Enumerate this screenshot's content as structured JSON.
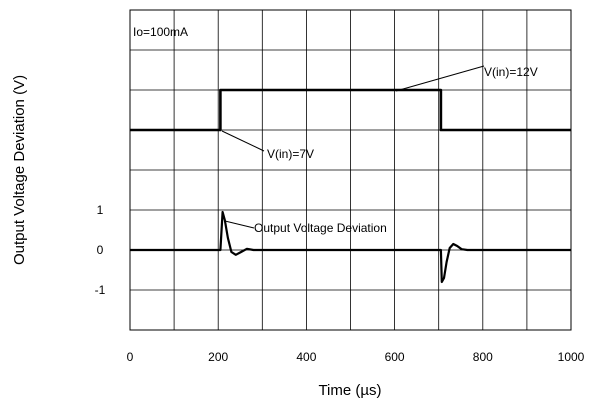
{
  "chart_data": {
    "type": "line",
    "title": "",
    "xlabel": "Time (µs)",
    "ylabel": "Output Voltage Deviation (V)",
    "xlim": [
      0,
      1000
    ],
    "x_ticks": [
      "0",
      "200",
      "400",
      "600",
      "800",
      "1000"
    ],
    "y_ticks": [
      "1",
      "0",
      "-1"
    ],
    "grid": true,
    "annotations": {
      "condition": "Io=100mA",
      "vin_high": "V(in)=12V",
      "vin_low": "V(in)=7V",
      "deviation": "Output Voltage Deviation"
    },
    "series": [
      {
        "x": [
          0,
          205,
          205,
          705,
          705,
          1000
        ],
        "y": [
          7,
          7,
          12,
          12,
          7,
          7
        ]
      },
      {
        "x": [
          0,
          205,
          210,
          215,
          222,
          230,
          240,
          252,
          265,
          280,
          705,
          707,
          712,
          718,
          725,
          733,
          742,
          752,
          765,
          780,
          1000
        ],
        "y": [
          0,
          0,
          0.95,
          0.75,
          0.3,
          -0.05,
          -0.12,
          -0.05,
          0.03,
          0,
          0,
          -0.8,
          -0.7,
          -0.3,
          0.05,
          0.15,
          0.1,
          0.02,
          0,
          0,
          0
        ]
      }
    ]
  }
}
